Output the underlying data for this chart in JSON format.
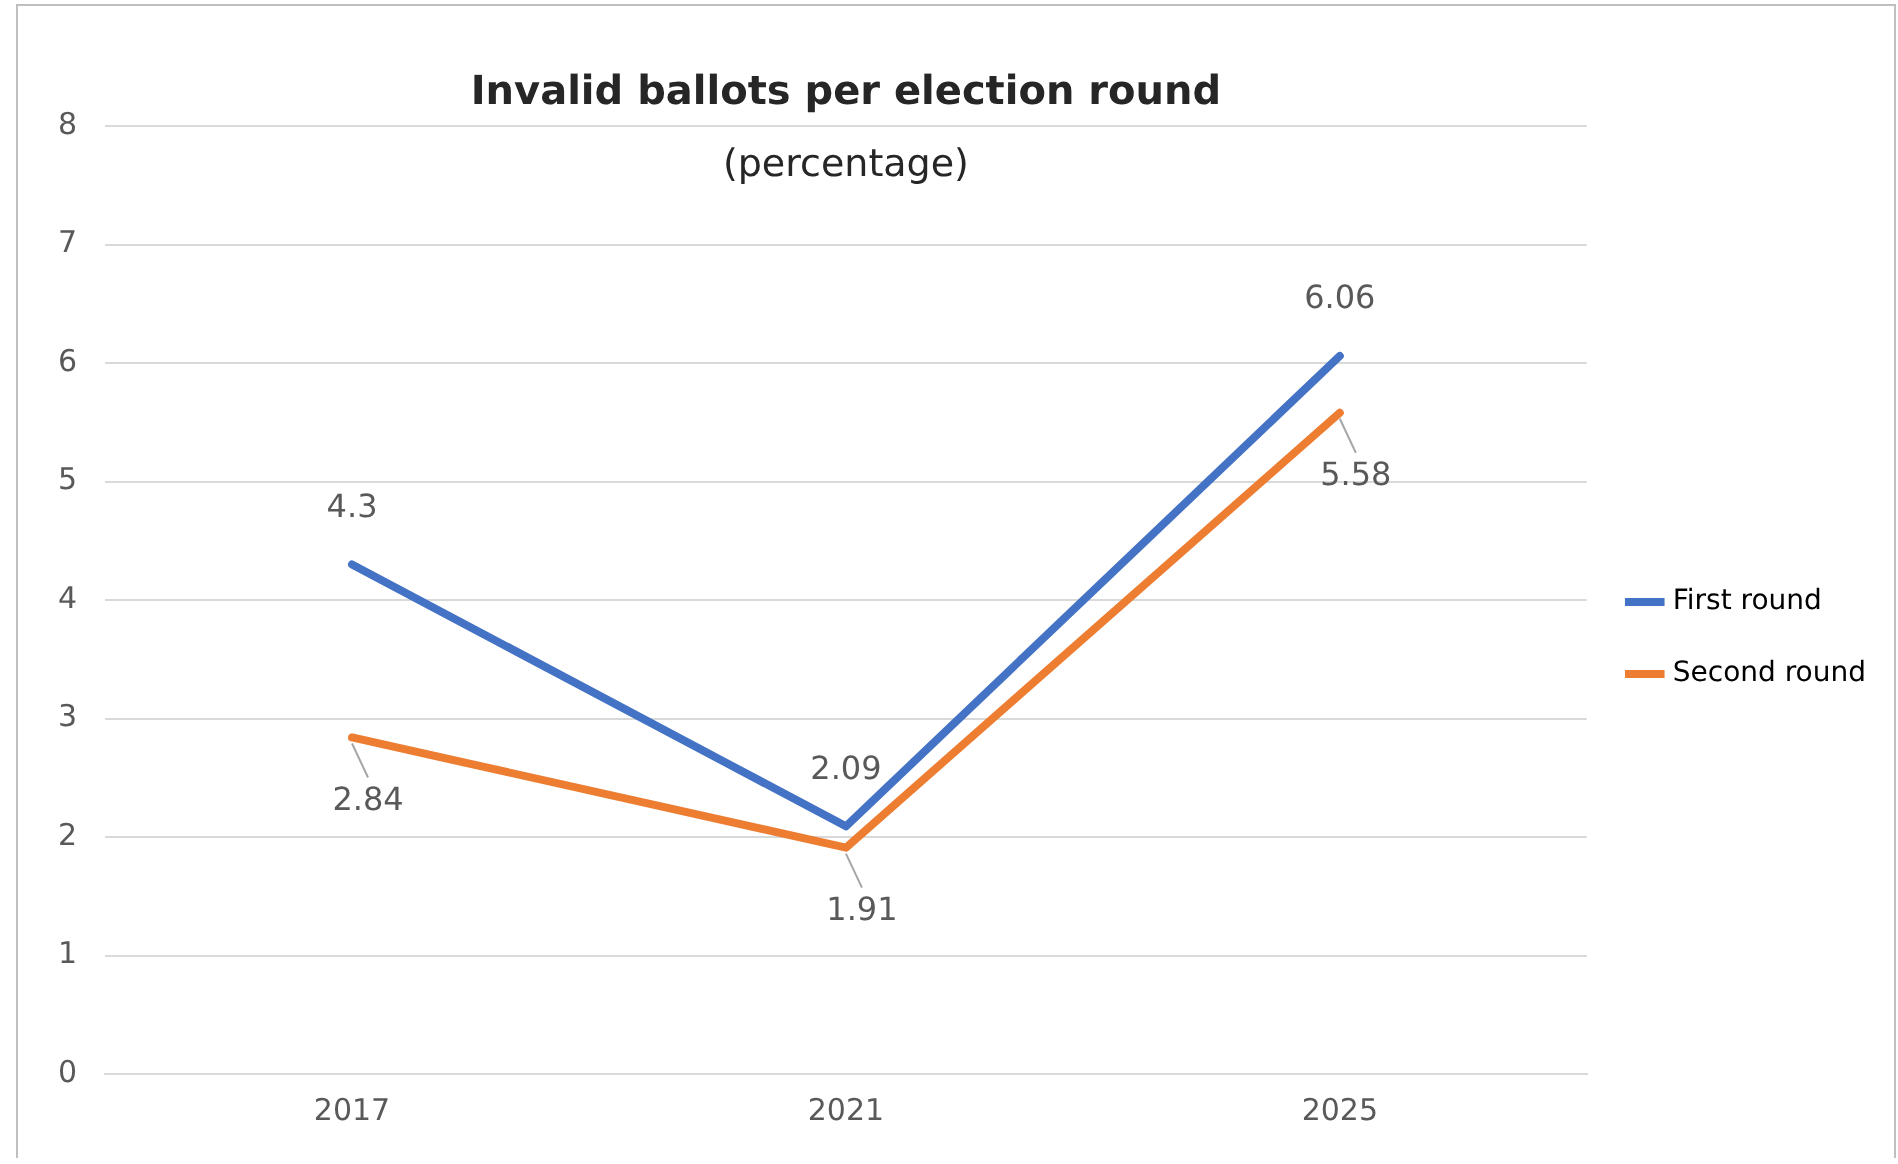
{
  "chart_data": {
    "type": "line",
    "title": "Invalid ballots per election round",
    "subtitle": "(percentage)",
    "categories": [
      "2017",
      "2021",
      "2025"
    ],
    "series": [
      {
        "name": "First round",
        "color": "#4472c4",
        "values": [
          4.3,
          2.09,
          6.06
        ]
      },
      {
        "name": "Second round",
        "color": "#ed7d31",
        "values": [
          2.84,
          1.91,
          5.58
        ]
      }
    ],
    "ylim": [
      0,
      8
    ],
    "yticks": [
      0,
      1,
      2,
      3,
      4,
      5,
      6,
      7,
      8
    ],
    "grid": "y",
    "legend": "right",
    "marker": "none",
    "line_style": "solid",
    "data_labels": true
  }
}
